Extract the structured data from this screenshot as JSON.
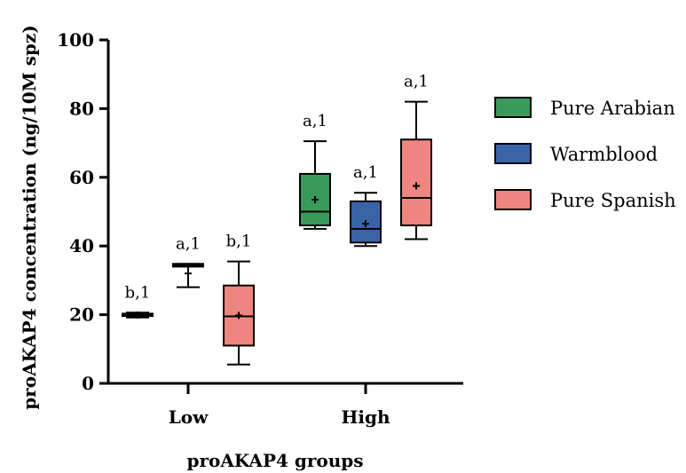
{
  "chart_data": {
    "type": "box",
    "title": "",
    "xlabel": "proAKAP4 groups",
    "ylabel": "proAKAP4 concentration (ng/10M spz)",
    "ylim": [
      0,
      100
    ],
    "yticks": [
      "0",
      "20",
      "40",
      "60",
      "80",
      "100"
    ],
    "categories": [
      "Low",
      "High"
    ],
    "legend_position": "right",
    "series": [
      {
        "name": "Pure Arabian",
        "color": "#3a9a5c",
        "boxes": [
          {
            "category": "Low",
            "min": 19.2,
            "q1": 19.6,
            "median": 20.0,
            "q3": 20.3,
            "max": 20.6,
            "mean": 19.9,
            "label": "b,1"
          },
          {
            "category": "High",
            "min": 45.0,
            "q1": 46.0,
            "median": 50.0,
            "q3": 61.0,
            "max": 70.5,
            "mean": 53.5,
            "label": "a,1"
          }
        ]
      },
      {
        "name": "Warmblood",
        "color": "#3a64a8",
        "boxes": [
          {
            "category": "Low",
            "min": 28.0,
            "q1": 34.0,
            "median": 34.4,
            "q3": 34.8,
            "max": 34.8,
            "mean": 32.0,
            "label": "a,1"
          },
          {
            "category": "High",
            "min": 40.0,
            "q1": 41.0,
            "median": 45.0,
            "q3": 53.0,
            "max": 55.5,
            "mean": 46.5,
            "label": "a,1"
          }
        ]
      },
      {
        "name": "Pure Spanish",
        "color": "#ef8580",
        "boxes": [
          {
            "category": "Low",
            "min": 5.5,
            "q1": 11.0,
            "median": 19.5,
            "q3": 28.5,
            "max": 35.5,
            "mean": 19.8,
            "label": "b,1"
          },
          {
            "category": "High",
            "min": 42.0,
            "q1": 46.0,
            "median": 54.0,
            "q3": 71.0,
            "max": 82.0,
            "mean": 57.5,
            "label": "a,1"
          }
        ]
      }
    ]
  }
}
